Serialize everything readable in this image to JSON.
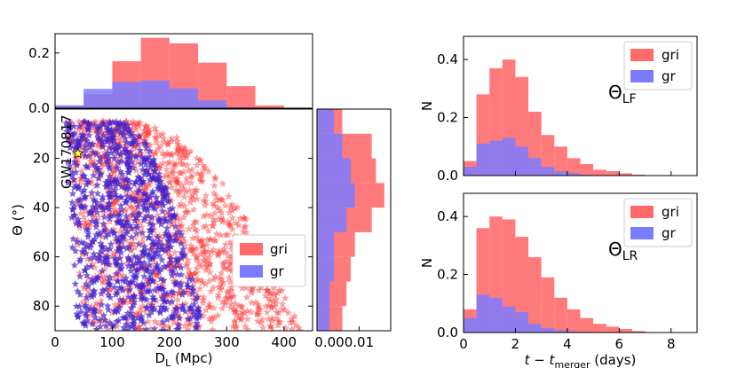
{
  "colors": {
    "gri": "#ff6b6b",
    "gr": "#7b7bff",
    "scatter_gri": "#ff3333",
    "scatter_gr": "#4422cc",
    "star": "#ffff33"
  },
  "chart_data": [
    {
      "id": "top_hist",
      "type": "histogram",
      "xlim": [
        0,
        450
      ],
      "ylim": [
        0,
        0.27
      ],
      "yticks": [
        0.0,
        0.2
      ],
      "ytick_labels": [
        "0.0",
        "0.2"
      ],
      "bin_edges": [
        0,
        50,
        100,
        150,
        200,
        250,
        300,
        350,
        400
      ],
      "series": [
        {
          "name": "gri",
          "values": [
            0.01,
            0.05,
            0.17,
            0.255,
            0.235,
            0.165,
            0.08,
            0.01
          ]
        },
        {
          "name": "gr",
          "values": [
            0.01,
            0.07,
            0.095,
            0.1,
            0.072,
            0.028,
            0.003,
            0.0
          ]
        }
      ]
    },
    {
      "id": "scatter",
      "type": "scatter",
      "xlabel": "D",
      "xlabel_sub": "L",
      "xlabel_unit": " (Mpc)",
      "ylabel": "Θ (°)",
      "xlim": [
        0,
        450
      ],
      "ylim": [
        90,
        0
      ],
      "xticks": [
        0,
        100,
        200,
        300,
        400
      ],
      "xtick_labels": [
        "0",
        "100",
        "200",
        "300",
        "400"
      ],
      "yticks": [
        20,
        40,
        60,
        80
      ],
      "ytick_labels": [
        "20",
        "40",
        "60",
        "80"
      ],
      "legend": [
        "gri",
        "gr"
      ],
      "legend_position": "lower-right",
      "annotation": {
        "text": "GW170817",
        "x": 40,
        "y": 18
      },
      "series": [
        {
          "name": "gri",
          "region": {
            "dmin": [
              20,
              50
            ],
            "dmax": [
              130,
              430
            ],
            "thmin": 5,
            "thmax": 90
          }
        },
        {
          "name": "gr",
          "region": {
            "dmin": [
              15,
              40
            ],
            "dmax": [
              110,
              260
            ],
            "thmin": 5,
            "thmax": 90
          }
        }
      ]
    },
    {
      "id": "right_hist",
      "type": "histogram_horizontal",
      "ylim": [
        90,
        0
      ],
      "xlim": [
        0,
        0.0175
      ],
      "xticks": [
        0.0,
        0.01
      ],
      "xtick_labels": [
        "0.00",
        "0.01"
      ],
      "bin_edges": [
        0,
        10,
        20,
        30,
        40,
        50,
        60,
        70,
        80,
        90
      ],
      "series": [
        {
          "name": "gri",
          "values": [
            0.006,
            0.013,
            0.014,
            0.016,
            0.013,
            0.009,
            0.008,
            0.007,
            0.006
          ]
        },
        {
          "name": "gr",
          "values": [
            0.004,
            0.006,
            0.008,
            0.009,
            0.007,
            0.004,
            0.004,
            0.003,
            0.003
          ]
        }
      ]
    },
    {
      "id": "lf_hist",
      "type": "histogram",
      "panel_label": "Θ",
      "panel_sub": "LF",
      "ylabel": "N",
      "xlim": [
        0,
        9
      ],
      "ylim": [
        0,
        0.48
      ],
      "yticks": [
        0.0,
        0.2,
        0.4
      ],
      "ytick_labels": [
        "0.0",
        "0.2",
        "0.4"
      ],
      "legend": [
        "gri",
        "gr"
      ],
      "legend_position": "top-right",
      "bin_edges": [
        0,
        0.5,
        1,
        1.5,
        2,
        2.5,
        3,
        3.5,
        4,
        4.5,
        5,
        5.5,
        6,
        6.5,
        7
      ],
      "series": [
        {
          "name": "gri",
          "values": [
            0.05,
            0.28,
            0.37,
            0.4,
            0.34,
            0.22,
            0.14,
            0.1,
            0.06,
            0.04,
            0.02,
            0.015,
            0.008,
            0.003
          ]
        },
        {
          "name": "gr",
          "values": [
            0.03,
            0.11,
            0.12,
            0.13,
            0.1,
            0.06,
            0.03,
            0.015,
            0.008,
            0.003,
            0.0,
            0.0,
            0.0,
            0.0
          ]
        }
      ]
    },
    {
      "id": "lr_hist",
      "type": "histogram",
      "panel_label": "Θ",
      "panel_sub": "LR",
      "ylabel": "N",
      "xlabel": "t − t",
      "xlabel_sub": "merger",
      "xlabel_unit": " (days)",
      "xlim": [
        0,
        9
      ],
      "ylim": [
        0,
        0.48
      ],
      "xticks": [
        0,
        2,
        4,
        6,
        8
      ],
      "xtick_labels": [
        "0",
        "2",
        "4",
        "6",
        "8"
      ],
      "yticks": [
        0.0,
        0.2,
        0.4
      ],
      "ytick_labels": [
        "0.0",
        "0.2",
        "0.4"
      ],
      "legend": [
        "gri",
        "gr"
      ],
      "legend_position": "top-right",
      "bin_edges": [
        0,
        0.5,
        1,
        1.5,
        2,
        2.5,
        3,
        3.5,
        4,
        4.5,
        5,
        5.5,
        6,
        6.5,
        7
      ],
      "series": [
        {
          "name": "gri",
          "values": [
            0.08,
            0.36,
            0.4,
            0.39,
            0.33,
            0.26,
            0.19,
            0.12,
            0.08,
            0.05,
            0.03,
            0.02,
            0.012,
            0.005
          ]
        },
        {
          "name": "gr",
          "values": [
            0.05,
            0.13,
            0.12,
            0.09,
            0.07,
            0.03,
            0.015,
            0.008,
            0.004,
            0.002,
            0.0,
            0.0,
            0.0,
            0.0
          ]
        }
      ]
    }
  ]
}
